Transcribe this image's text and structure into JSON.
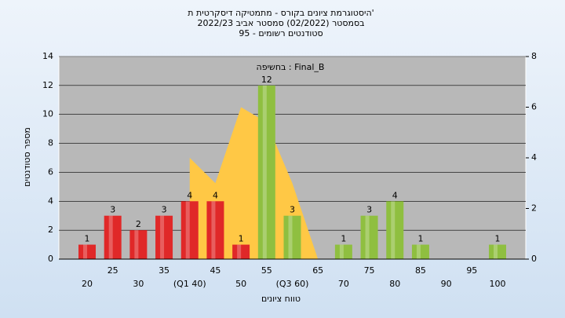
{
  "chart_data": {
    "type": "bar",
    "title": [
      "היסטוגרמת ציונים בקורס - מתמטיקה דיסקרטית ת'",
      "בסמסטר (02/2022) סמסטר אביב 2022/23",
      "סטודנטים רשומים - 95"
    ],
    "annotation": "בחשיפה : Final_B",
    "y_label": "מספר סטודנטים",
    "x_label": "טווח ציונים",
    "categories": [
      "20",
      "25",
      "30",
      "35",
      "(Q1 40)",
      "45",
      "50",
      "55",
      "(Q3 60)",
      "65",
      "70",
      "75",
      "80",
      "85",
      "90",
      "95",
      "100"
    ],
    "values": [
      1,
      3,
      2,
      3,
      4,
      4,
      1,
      12,
      3,
      0,
      1,
      3,
      4,
      1,
      0,
      0,
      1
    ],
    "value_labels": [
      "1",
      "3",
      "2",
      "3",
      "4",
      "4",
      "1",
      "12",
      "3",
      null,
      "1",
      "3",
      "4",
      "1",
      null,
      null,
      "1"
    ],
    "colors": [
      "#e02828",
      "#e02828",
      "#e02828",
      "#e02828",
      "#e02828",
      "#e02828",
      "#e02828",
      "#8fbf40",
      "#8fbf40",
      "#8fbf40",
      "#8fbf40",
      "#8fbf40",
      "#8fbf40",
      "#8fbf40",
      "#8fbf40",
      "#8fbf40",
      "#8fbf40"
    ],
    "area": {
      "axis": "y2",
      "color": "#ffc845",
      "values": [
        null,
        null,
        null,
        null,
        4,
        3,
        6,
        5.4,
        3,
        0,
        null,
        null,
        null,
        null,
        null,
        null,
        null
      ]
    },
    "ylim": [
      0,
      14
    ],
    "yticks": [
      0,
      2,
      4,
      6,
      8,
      10,
      12,
      14
    ],
    "y2lim": [
      0,
      8
    ],
    "y2ticks": [
      0,
      2,
      4,
      6,
      8
    ],
    "grid": true
  }
}
